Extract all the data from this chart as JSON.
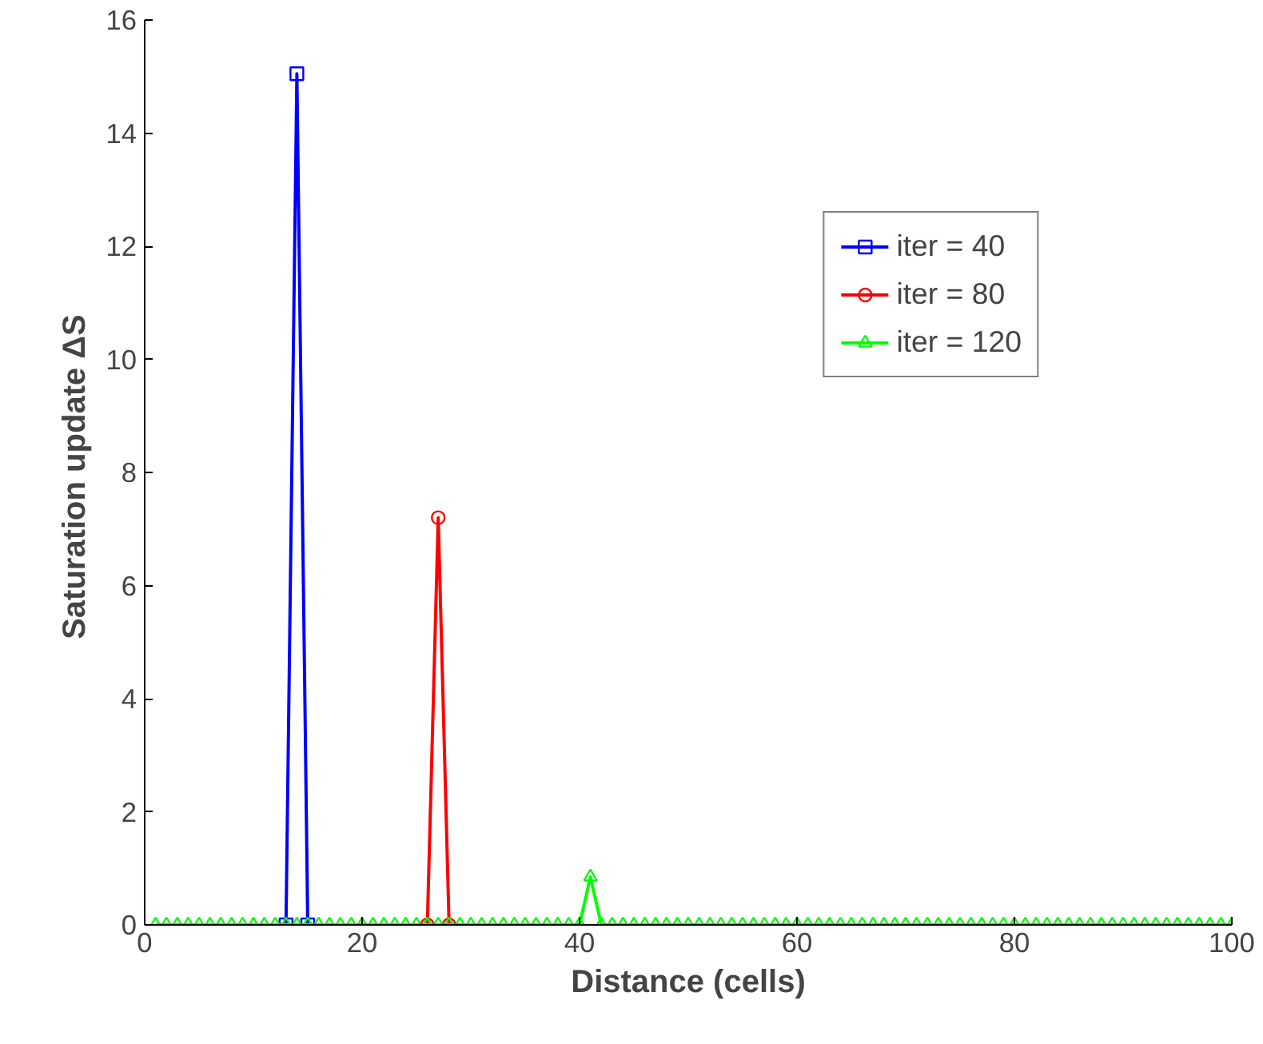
{
  "chart_data": {
    "type": "line",
    "xlabel": "Distance (cells)",
    "ylabel": "Saturation update  ΔS",
    "x": [
      1,
      2,
      3,
      4,
      5,
      6,
      7,
      8,
      9,
      10,
      11,
      12,
      13,
      14,
      15,
      16,
      17,
      18,
      19,
      20,
      21,
      22,
      23,
      24,
      25,
      26,
      27,
      28,
      29,
      30,
      31,
      32,
      33,
      34,
      35,
      36,
      37,
      38,
      39,
      40,
      41,
      42,
      43,
      44,
      45,
      46,
      47,
      48,
      49,
      50,
      51,
      52,
      53,
      54,
      55,
      56,
      57,
      58,
      59,
      60,
      61,
      62,
      63,
      64,
      65,
      66,
      67,
      68,
      69,
      70,
      71,
      72,
      73,
      74,
      75,
      76,
      77,
      78,
      79,
      80,
      81,
      82,
      83,
      84,
      85,
      86,
      87,
      88,
      89,
      90,
      91,
      92,
      93,
      94,
      95,
      96,
      97,
      98,
      99,
      100
    ],
    "series": [
      {
        "name": "iter = 40",
        "color": "#0000ff",
        "marker": "square",
        "x": [
          13,
          14,
          15
        ],
        "values": [
          0,
          15.05,
          0
        ]
      },
      {
        "name": "iter = 80",
        "color": "#ff0000",
        "marker": "circle",
        "x": [
          26,
          27,
          28
        ],
        "values": [
          0,
          7.2,
          0
        ]
      },
      {
        "name": "iter = 120",
        "color": "#00ff00",
        "marker": "triangle",
        "values": [
          0,
          0,
          0,
          0,
          0,
          0,
          0,
          0,
          0,
          0,
          0,
          0,
          0,
          0,
          0,
          0,
          0,
          0,
          0,
          0,
          0,
          0,
          0,
          0,
          0,
          0,
          0,
          0,
          0,
          0,
          0,
          0,
          0,
          0,
          0,
          0,
          0,
          0,
          0,
          0,
          0.85,
          0,
          0,
          0,
          0,
          0,
          0,
          0,
          0,
          0,
          0,
          0,
          0,
          0,
          0,
          0,
          0,
          0,
          0,
          0,
          0,
          0,
          0,
          0,
          0,
          0,
          0,
          0,
          0,
          0,
          0,
          0,
          0,
          0,
          0,
          0,
          0,
          0,
          0,
          0,
          0,
          0,
          0,
          0,
          0,
          0,
          0,
          0,
          0,
          0,
          0,
          0,
          0,
          0,
          0,
          0,
          0,
          0,
          0,
          0
        ]
      }
    ],
    "xlim": [
      0,
      100
    ],
    "xticks": [
      0,
      20,
      40,
      60,
      80,
      100
    ],
    "ylim": [
      0,
      16
    ],
    "yticks": [
      0,
      2,
      4,
      6,
      8,
      10,
      12,
      14,
      16
    ],
    "grid": false,
    "legend": "top right",
    "line_style": "solid"
  }
}
